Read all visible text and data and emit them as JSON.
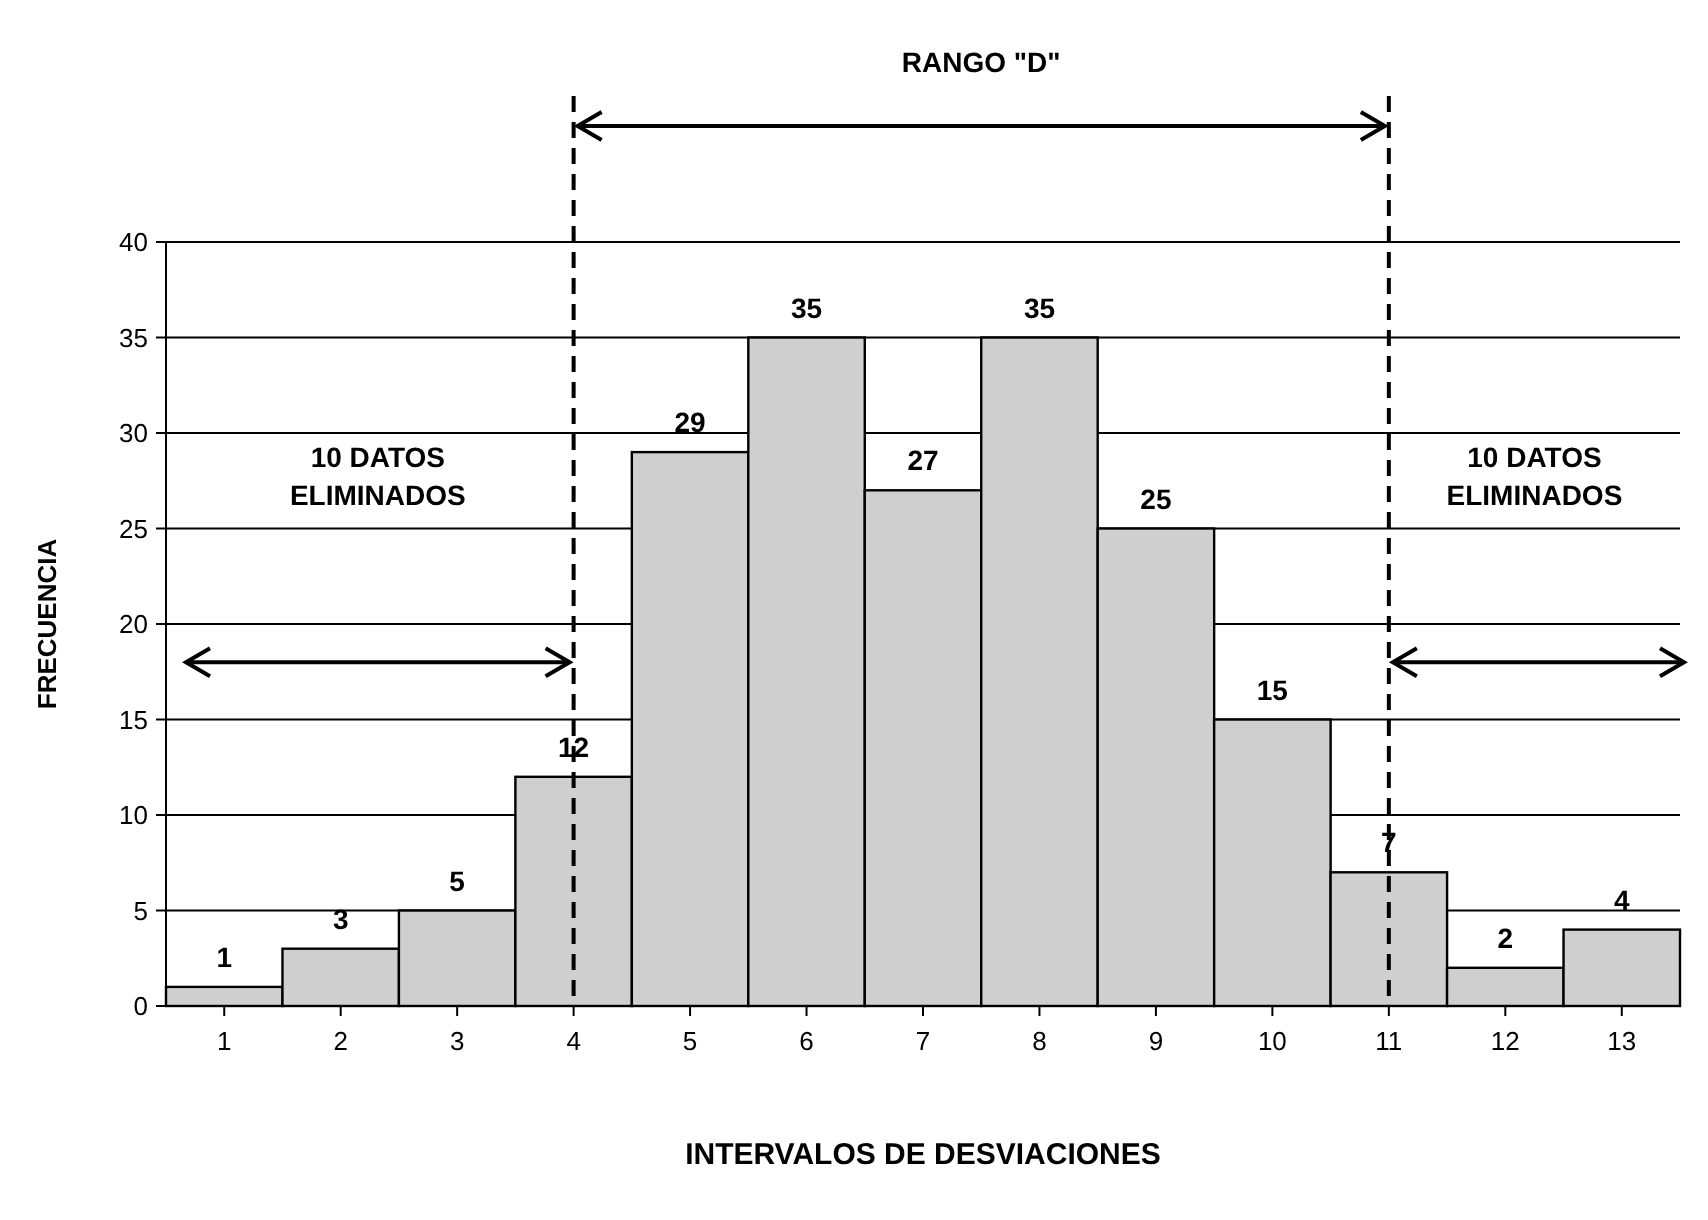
{
  "chart_data": {
    "type": "bar",
    "xlabel": "INTERVALOS DE DESVIACIONES",
    "ylabel": "FRECUENCIA",
    "categories": [
      "1",
      "2",
      "3",
      "4",
      "5",
      "6",
      "7",
      "8",
      "9",
      "10",
      "11",
      "12",
      "13"
    ],
    "values": [
      1,
      3,
      5,
      12,
      29,
      35,
      27,
      35,
      25,
      15,
      7,
      2,
      4
    ],
    "color": "#cfcfcf",
    "data_labels": true,
    "ylim": [
      0,
      40
    ],
    "yticks": [
      0,
      5,
      10,
      15,
      20,
      25,
      30,
      35,
      40
    ],
    "grid": "y",
    "ref_lines": [
      {
        "axis": "x",
        "value": "4",
        "line_style": "dashed",
        "color": "#000000"
      },
      {
        "axis": "x",
        "value": "11",
        "line_style": "dashed",
        "color": "#000000"
      }
    ],
    "annotations": [
      "RANGO \"D\"",
      "10 DATOS ELIMINADOS",
      "10 DATOS ELIMINADOS"
    ]
  }
}
